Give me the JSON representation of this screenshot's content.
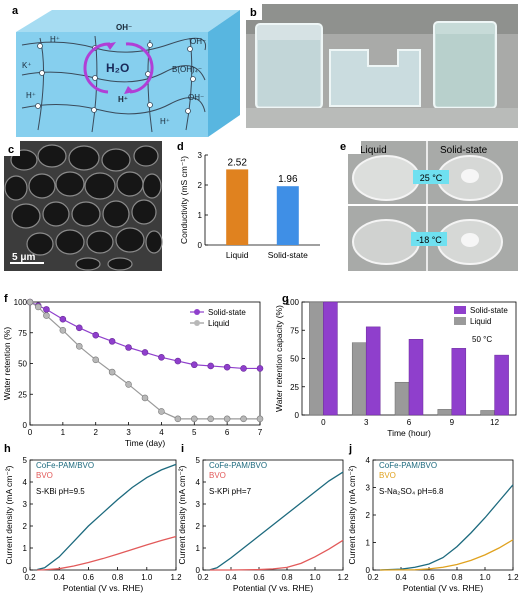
{
  "panels": {
    "a": {
      "label": "a",
      "oh_top": "OH⁻",
      "h2o": "H₂O",
      "oh_right": "OH⁻",
      "h_left": "H⁺",
      "k": "K⁺",
      "boh": "B(OH)₄⁻",
      "h_bottom": "H⁺",
      "oh_bottom": "OH⁻",
      "h_bl": "H⁺",
      "h_br": "H⁺"
    },
    "b": {
      "label": "b"
    },
    "c": {
      "label": "c",
      "scale": "5 μm"
    },
    "e": {
      "label": "e",
      "liquid": "Liquid",
      "solid": "Solid-state",
      "t1": "25 °C",
      "t2": "-18 °C"
    }
  },
  "colors": {
    "purple": "#8f3fcc",
    "gray": "#9a9a9a",
    "orange": "#e0821f",
    "blue": "#3f8fe6",
    "teal": "#1d6a7e",
    "red": "#e25a5a",
    "yellow": "#e0a21f",
    "cyan": "#6fe0f0"
  },
  "chart_data": [
    {
      "id": "d",
      "label": "d",
      "type": "bar",
      "categories": [
        "Liquid",
        "Solid-state"
      ],
      "values": [
        2.52,
        1.96
      ],
      "value_labels": [
        "2.52",
        "1.96"
      ],
      "ylabel": "Conductivity (mS cm⁻¹)",
      "ylim": [
        0,
        3
      ],
      "yticks": [
        "0",
        "1",
        "2",
        "3"
      ]
    },
    {
      "id": "f",
      "label": "f",
      "type": "line",
      "xlabel": "Time (day)",
      "ylabel": "Water retention (%)",
      "xlim": [
        0,
        7
      ],
      "ylim": [
        0,
        100
      ],
      "xticks": [
        "0",
        "1",
        "2",
        "3",
        "4",
        "5",
        "6",
        "7"
      ],
      "yticks": [
        "0",
        "25",
        "50",
        "75",
        "100"
      ],
      "legend_position": "top-right",
      "series": [
        {
          "name": "Solid-state",
          "x": [
            0,
            0.25,
            0.5,
            1,
            1.5,
            2,
            2.5,
            3,
            3.5,
            4,
            4.5,
            5,
            5.5,
            6,
            6.5,
            7
          ],
          "values": [
            100,
            97,
            94,
            86,
            79,
            73,
            68,
            63,
            59,
            55,
            52,
            49,
            48,
            47,
            46,
            46
          ]
        },
        {
          "name": "Liquid",
          "x": [
            0,
            0.25,
            0.5,
            1,
            1.5,
            2,
            2.5,
            3,
            3.5,
            4,
            4.5,
            5,
            5.5,
            6,
            6.5,
            7
          ],
          "values": [
            100,
            96,
            89,
            77,
            64,
            53,
            43,
            33,
            22,
            11,
            5,
            5,
            5,
            5,
            5,
            5
          ]
        }
      ]
    },
    {
      "id": "g",
      "label": "g",
      "type": "bar",
      "categories": [
        "0",
        "3",
        "6",
        "9",
        "12"
      ],
      "xlabel": "Time (hour)",
      "ylabel": "Water retention capacity (%)",
      "ylim": [
        0,
        100
      ],
      "yticks": [
        "0",
        "25",
        "50",
        "75",
        "100"
      ],
      "annotation": "50 °C",
      "legend_position": "top-right",
      "series": [
        {
          "name": "Liquid",
          "values": [
            100,
            64,
            29,
            5,
            4
          ]
        },
        {
          "name": "Solid-state",
          "values": [
            100,
            78,
            67,
            59,
            53
          ]
        }
      ]
    },
    {
      "id": "h",
      "label": "h",
      "type": "line",
      "xlabel": "Potential (V vs. RHE)",
      "ylabel": "Current density (mA cm⁻²)",
      "xlim": [
        0.2,
        1.2
      ],
      "ylim": [
        0,
        5
      ],
      "xticks": [
        "0.2",
        "0.4",
        "0.6",
        "0.8",
        "1.0",
        "1.2"
      ],
      "yticks": [
        "0",
        "1",
        "2",
        "3",
        "4",
        "5"
      ],
      "annotation": "S-KBi pH=9.5",
      "series": [
        {
          "name": "CoFe-PAM/BVO",
          "x": [
            0.25,
            0.3,
            0.4,
            0.5,
            0.6,
            0.7,
            0.8,
            0.9,
            1.0,
            1.1,
            1.2
          ],
          "values": [
            0.02,
            0.1,
            0.6,
            1.3,
            2.0,
            2.6,
            3.2,
            3.75,
            4.2,
            4.55,
            4.8
          ]
        },
        {
          "name": "BVO",
          "x": [
            0.25,
            0.3,
            0.4,
            0.5,
            0.6,
            0.7,
            0.8,
            0.9,
            1.0,
            1.1,
            1.2
          ],
          "values": [
            0,
            0.01,
            0.06,
            0.18,
            0.34,
            0.52,
            0.72,
            0.93,
            1.14,
            1.34,
            1.52
          ]
        }
      ]
    },
    {
      "id": "i",
      "label": "i",
      "type": "line",
      "xlabel": "Potential (V vs. RHE)",
      "ylabel": "Current density (mA cm⁻²)",
      "xlim": [
        0.2,
        1.2
      ],
      "ylim": [
        0,
        5
      ],
      "xticks": [
        "0.2",
        "0.4",
        "0.6",
        "0.8",
        "1.0",
        "1.2"
      ],
      "yticks": [
        "0",
        "1",
        "2",
        "3",
        "4",
        "5"
      ],
      "annotation": "S-KPi pH=7",
      "series": [
        {
          "name": "CoFe-PAM/BVO",
          "x": [
            0.25,
            0.3,
            0.4,
            0.5,
            0.6,
            0.7,
            0.8,
            0.9,
            1.0,
            1.1,
            1.2
          ],
          "values": [
            0.01,
            0.1,
            0.55,
            1.05,
            1.55,
            2.05,
            2.55,
            3.05,
            3.55,
            4.05,
            4.45
          ]
        },
        {
          "name": "BVO",
          "x": [
            0.25,
            0.4,
            0.6,
            0.7,
            0.8,
            0.9,
            1.0,
            1.1,
            1.2
          ],
          "values": [
            0,
            0,
            0.02,
            0.05,
            0.12,
            0.3,
            0.6,
            0.95,
            1.35
          ]
        }
      ]
    },
    {
      "id": "j",
      "label": "j",
      "type": "line",
      "xlabel": "Potential (V vs. RHE)",
      "ylabel": "Current density (mA cm⁻²)",
      "xlim": [
        0.2,
        1.2
      ],
      "ylim": [
        0,
        4
      ],
      "xticks": [
        "0.2",
        "0.4",
        "0.6",
        "0.8",
        "1.0",
        "1.2"
      ],
      "yticks": [
        "0",
        "1",
        "2",
        "3",
        "4"
      ],
      "annotation": "S-Na₂SO₄ pH=6.8",
      "series": [
        {
          "name": "CoFe-PAM/BVO",
          "x": [
            0.25,
            0.4,
            0.5,
            0.6,
            0.7,
            0.8,
            0.9,
            1.0,
            1.1,
            1.2
          ],
          "values": [
            0,
            0.03,
            0.1,
            0.22,
            0.45,
            0.85,
            1.35,
            1.9,
            2.5,
            3.1
          ]
        },
        {
          "name": "BVO",
          "x": [
            0.25,
            0.5,
            0.6,
            0.7,
            0.8,
            0.9,
            1.0,
            1.1,
            1.2
          ],
          "values": [
            0,
            0.01,
            0.04,
            0.1,
            0.2,
            0.35,
            0.55,
            0.8,
            1.1
          ]
        }
      ]
    }
  ]
}
